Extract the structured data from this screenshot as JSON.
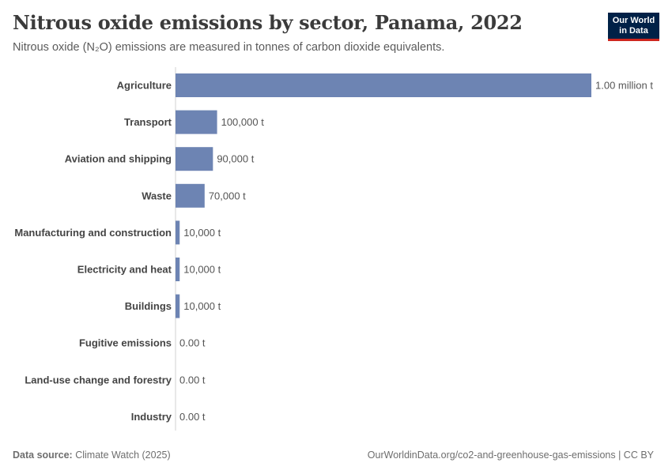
{
  "header": {
    "title": "Nitrous oxide emissions by sector, Panama, 2022",
    "subtitle": "Nitrous oxide (N₂O) emissions are measured in tonnes of carbon dioxide equivalents."
  },
  "logo": {
    "line1": "Our World",
    "line2": "in Data"
  },
  "footer": {
    "source_label": "Data source:",
    "source_value": "Climate Watch (2025)",
    "url_license": "OurWorldinData.org/co2-and-greenhouse-gas-emissions | CC BY"
  },
  "colors": {
    "bar": "#6d84b3",
    "label": "#444444",
    "value": "#555555",
    "axis": "#d0d0d0"
  },
  "chart_data": {
    "type": "bar",
    "orientation": "horizontal",
    "categories": [
      "Agriculture",
      "Transport",
      "Aviation and shipping",
      "Waste",
      "Manufacturing and construction",
      "Electricity and heat",
      "Buildings",
      "Fugitive emissions",
      "Land-use change and forestry",
      "Industry"
    ],
    "values": [
      1000000,
      100000,
      90000,
      70000,
      10000,
      10000,
      10000,
      0,
      0,
      0
    ],
    "value_labels": [
      "1.00 million t",
      "100,000 t",
      "90,000 t",
      "70,000 t",
      "10,000 t",
      "10,000 t",
      "10,000 t",
      "0.00 t",
      "0.00 t",
      "0.00 t"
    ],
    "xlim": [
      0,
      1000000
    ],
    "grid": false,
    "legend": "none"
  }
}
